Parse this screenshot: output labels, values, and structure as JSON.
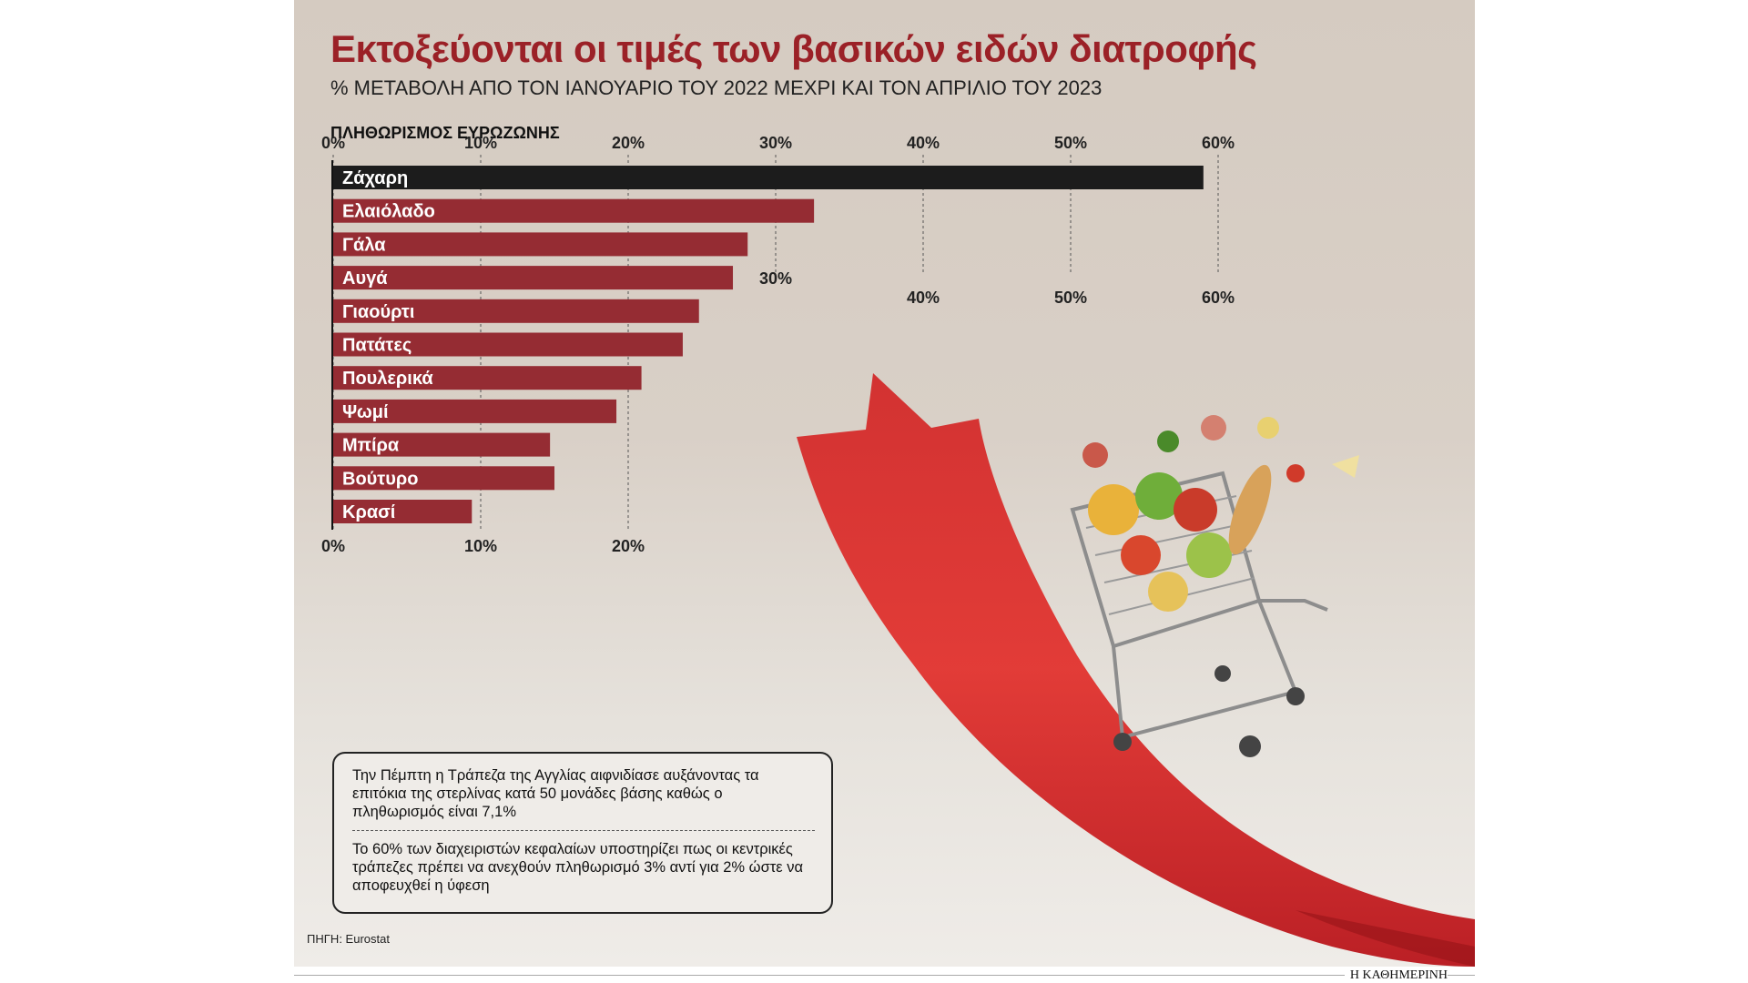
{
  "title": "Εκτοξεύονται οι τιμές των βασικών ειδών διατροφής",
  "subtitle": "% ΜΕΤΑΒΟΛΗ ΑΠΟ ΤΟΝ ΙΑΝΟΥΑΡΙΟ ΤΟΥ 2022 ΜΕΧΡΙ ΚΑΙ ΤΟΝ ΑΠΡΙΛΙΟ ΤΟΥ 2023",
  "section_label": "ΠΛΗΘΩΡΙΣΜΟΣ ΕΥΡΩΖΩΝΗΣ",
  "notes": [
    "Την Πέμπτη η Τράπεζα της Αγγλίας αιφνιδίασε αυξάνοντας τα επιτόκια της στερλίνας κατά 50 μονάδες βάσης καθώς ο πληθωρισμός είναι 7,1%",
    "Το 60% των διαχειριστών κεφαλαίων υποστηρίζει πως οι κεντρικές τράπεζες πρέπει να ανεχθούν πληθωρισμό 3% αντί για 2% ώστε να αποφευχθεί η ύφεση"
  ],
  "source": "ΠΗΓΗ: Eurostat",
  "publisher": "Η ΚΑΘΗΜΕΡΙΝΗ",
  "colors": {
    "bar": "#952c33",
    "highlight_bar": "#1c1c1c",
    "title": "#9b2127",
    "arrow": "#d42a2a"
  },
  "illustration": "red-arrow-and-shopping-cart-icon",
  "chart_data": {
    "type": "bar",
    "orientation": "horizontal",
    "categories": [
      "Ζάχαρη",
      "Ελαιόλαδο",
      "Γάλα",
      "Αυγά",
      "Γιαούρτι",
      "Πατάτες",
      "Πουλερικά",
      "Ψωμί",
      "Μπίρα",
      "Βούτυρο",
      "Κρασί"
    ],
    "values": [
      59,
      32.6,
      28.1,
      27.1,
      24.8,
      23.7,
      20.9,
      19.2,
      14.7,
      15.0,
      9.4
    ],
    "highlight": "Ζάχαρη",
    "xlim": [
      0,
      60
    ],
    "ticks_top": [
      "0%",
      "10%",
      "20%",
      "30%",
      "40%",
      "50%",
      "60%"
    ],
    "ticks_mid": [
      "30%",
      "40%",
      "50%",
      "60%"
    ],
    "ticks_bottom": [
      "0%",
      "10%",
      "20%"
    ],
    "grid": "dashed-vertical"
  }
}
